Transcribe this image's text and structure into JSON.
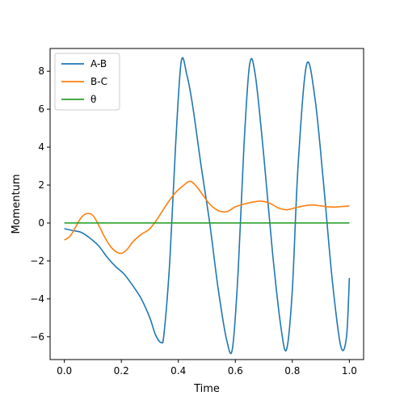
{
  "chart_data": {
    "type": "line",
    "title": "",
    "xlabel": "Time",
    "ylabel": "Momentum",
    "xlim": [
      -0.05,
      1.05
    ],
    "ylim": [
      -7.2,
      9.2
    ],
    "xticks": [
      0.0,
      0.2,
      0.4,
      0.6,
      0.8,
      1.0
    ],
    "xtick_labels": [
      "0.0",
      "0.2",
      "0.4",
      "0.6",
      "0.8",
      "1.0"
    ],
    "yticks": [
      -6,
      -4,
      -2,
      0,
      2,
      4,
      6,
      8
    ],
    "ytick_labels": [
      "−6",
      "−4",
      "−2",
      "0",
      "2",
      "4",
      "6",
      "8"
    ],
    "grid": false,
    "legend_position": "top-left",
    "series": [
      {
        "name": "A-B",
        "color": "#1f77b4",
        "x": [
          0.0,
          0.03,
          0.06,
          0.09,
          0.12,
          0.15,
          0.18,
          0.21,
          0.24,
          0.27,
          0.3,
          0.32,
          0.34,
          0.35,
          0.37,
          0.39,
          0.41,
          0.43,
          0.45,
          0.48,
          0.51,
          0.54,
          0.57,
          0.59,
          0.61,
          0.63,
          0.65,
          0.67,
          0.7,
          0.73,
          0.76,
          0.78,
          0.8,
          0.82,
          0.85,
          0.88,
          0.91,
          0.94,
          0.97,
          0.99,
          1.0
        ],
        "y": [
          -0.3,
          -0.4,
          -0.5,
          -0.8,
          -1.2,
          -1.8,
          -2.3,
          -2.7,
          -3.3,
          -4.0,
          -5.0,
          -5.9,
          -6.3,
          -5.8,
          -2.0,
          4.0,
          8.5,
          7.8,
          6.2,
          3.0,
          0.0,
          -3.5,
          -6.2,
          -6.6,
          -2.5,
          4.0,
          8.35,
          7.8,
          3.5,
          -1.5,
          -5.5,
          -6.65,
          -3.5,
          3.0,
          8.35,
          6.5,
          2.0,
          -3.0,
          -6.5,
          -6.0,
          -2.9
        ]
      },
      {
        "name": "B-C",
        "color": "#ff7f0e",
        "x": [
          0.0,
          0.02,
          0.04,
          0.06,
          0.08,
          0.1,
          0.12,
          0.14,
          0.16,
          0.18,
          0.2,
          0.22,
          0.24,
          0.27,
          0.3,
          0.33,
          0.36,
          0.39,
          0.42,
          0.44,
          0.46,
          0.48,
          0.51,
          0.54,
          0.57,
          0.6,
          0.63,
          0.66,
          0.69,
          0.72,
          0.75,
          0.78,
          0.81,
          0.84,
          0.87,
          0.9,
          0.93,
          0.96,
          1.0
        ],
        "y": [
          -0.9,
          -0.7,
          -0.2,
          0.3,
          0.5,
          0.4,
          -0.1,
          -0.7,
          -1.2,
          -1.5,
          -1.6,
          -1.4,
          -1.0,
          -0.6,
          -0.3,
          0.3,
          1.0,
          1.6,
          2.0,
          2.2,
          2.0,
          1.6,
          1.0,
          0.65,
          0.6,
          0.85,
          1.0,
          1.1,
          1.15,
          1.05,
          0.8,
          0.7,
          0.8,
          0.9,
          0.95,
          0.9,
          0.85,
          0.85,
          0.9
        ]
      },
      {
        "name": "θ",
        "color": "#2ca02c",
        "x": [
          0.0,
          1.0
        ],
        "y": [
          0.0,
          0.0
        ]
      }
    ]
  }
}
